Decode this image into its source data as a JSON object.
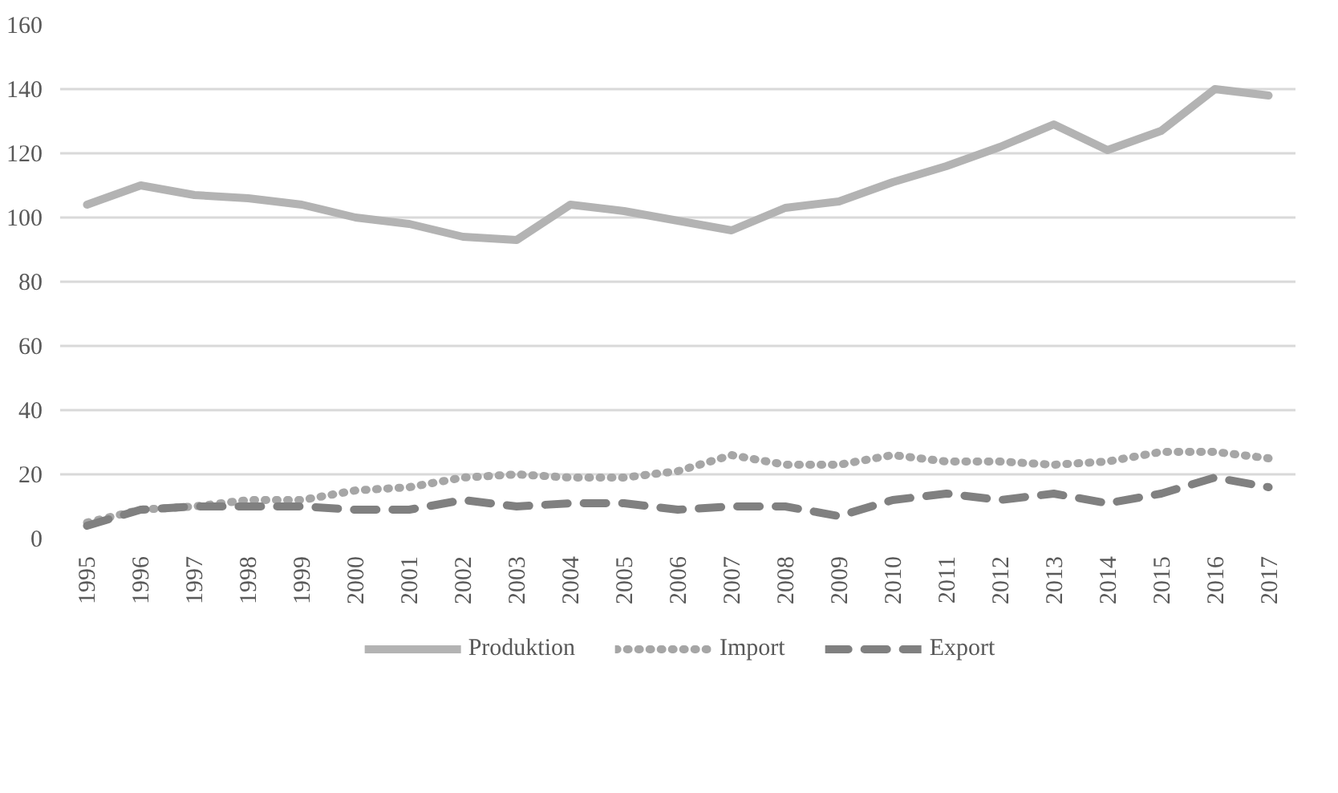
{
  "chart_data": {
    "type": "line",
    "categories": [
      "1995",
      "1996",
      "1997",
      "1998",
      "1999",
      "2000",
      "2001",
      "2002",
      "2003",
      "2004",
      "2005",
      "2006",
      "2007",
      "2008",
      "2009",
      "2010",
      "2011",
      "2012",
      "2013",
      "2014",
      "2015",
      "2016",
      "2017"
    ],
    "series": [
      {
        "name": "Produktion",
        "color": "#b3b3b3",
        "line_style": "solid",
        "values": [
          104,
          110,
          107,
          106,
          104,
          100,
          98,
          94,
          93,
          104,
          102,
          99,
          96,
          103,
          105,
          111,
          116,
          122,
          129,
          121,
          127,
          140,
          138
        ]
      },
      {
        "name": "Import",
        "color": "#a6a6a6",
        "line_style": "dotted",
        "values": [
          5,
          9,
          10,
          12,
          12,
          15,
          16,
          19,
          20,
          19,
          19,
          21,
          26,
          23,
          23,
          26,
          24,
          24,
          23,
          24,
          27,
          27,
          25
        ]
      },
      {
        "name": "Export",
        "color": "#808080",
        "line_style": "dashed",
        "values": [
          4,
          9,
          10,
          10,
          10,
          9,
          9,
          12,
          10,
          11,
          11,
          9,
          10,
          10,
          7,
          12,
          14,
          12,
          14,
          11,
          14,
          19,
          16
        ]
      }
    ],
    "ylim": [
      0,
      160
    ],
    "yticks": [
      0,
      20,
      40,
      60,
      80,
      100,
      120,
      140,
      160
    ],
    "grid": "y",
    "legend": "bottom"
  }
}
